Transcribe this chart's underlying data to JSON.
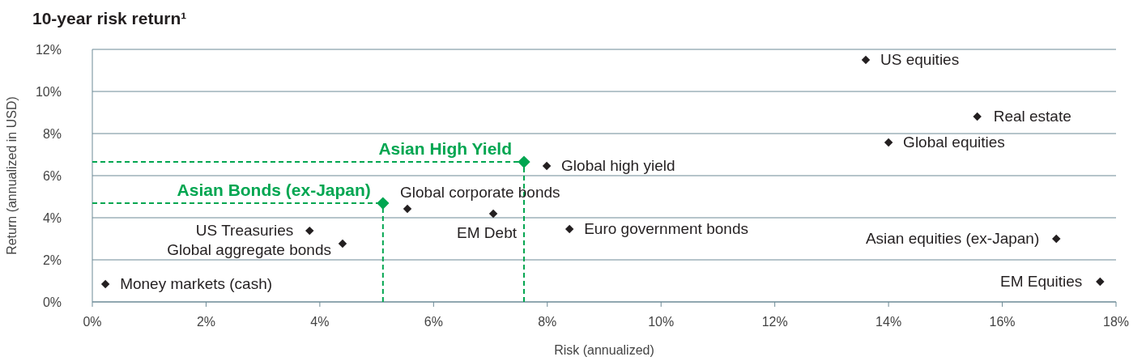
{
  "chart_data": {
    "type": "scatter",
    "title": "10-year risk return¹",
    "xlabel": "Risk (annualized)",
    "ylabel": "Return (annualized in USD)",
    "xlim": [
      0,
      18
    ],
    "ylim": [
      0,
      12
    ],
    "xticks": [
      {
        "value": 0,
        "label": "0%"
      },
      {
        "value": 2,
        "label": "2%"
      },
      {
        "value": 4,
        "label": "4%"
      },
      {
        "value": 6,
        "label": "6%"
      },
      {
        "value": 8,
        "label": "8%"
      },
      {
        "value": 10,
        "label": "10%"
      },
      {
        "value": 12,
        "label": "12%"
      },
      {
        "value": 14,
        "label": "14%"
      },
      {
        "value": 16,
        "label": "16%"
      },
      {
        "value": 18,
        "label": "18%"
      }
    ],
    "yticks": [
      {
        "value": 0,
        "label": "0%"
      },
      {
        "value": 2,
        "label": "2%"
      },
      {
        "value": 4,
        "label": "4%"
      },
      {
        "value": 6,
        "label": "6%"
      },
      {
        "value": 8,
        "label": "8%"
      },
      {
        "value": 10,
        "label": "10%"
      },
      {
        "value": 12,
        "label": "12%"
      }
    ],
    "grid": "y",
    "marker": "diamond",
    "series": [
      {
        "color": "#231f20",
        "x": [
          13.6,
          15.56,
          14.0,
          7.99,
          5.54,
          3.82,
          4.4,
          7.05,
          8.39,
          16.95,
          17.72,
          0.23
        ],
        "values": [
          11.5,
          8.81,
          7.58,
          6.46,
          4.42,
          3.38,
          2.77,
          4.19,
          3.46,
          3.0,
          0.96,
          0.85
        ]
      },
      {
        "name": "Asian High Yield",
        "color": "#00a651",
        "x": [
          7.59
        ],
        "values": [
          6.65
        ]
      },
      {
        "name": "Asian Bonds (ex-Japan)",
        "color": "#00a651",
        "x": [
          5.11
        ],
        "values": [
          4.69
        ]
      }
    ],
    "ref_lines": [
      {
        "axis": "x",
        "value": 7.59,
        "color": "#00a651",
        "line_style": "dashed"
      },
      {
        "axis": "y",
        "value": 6.65,
        "color": "#00a651",
        "line_style": "dashed"
      },
      {
        "axis": "x",
        "value": 5.11,
        "color": "#00a651",
        "line_style": "dashed"
      },
      {
        "axis": "y",
        "value": 4.69,
        "color": "#00a651",
        "line_style": "dashed"
      }
    ],
    "annotations": [
      {
        "text": "US equities",
        "x": 13.6,
        "y": 11.5
      },
      {
        "text": "Real estate",
        "x": 15.56,
        "y": 8.81
      },
      {
        "text": "Global equities",
        "x": 14.0,
        "y": 7.58
      },
      {
        "text": "Global high yield",
        "x": 7.99,
        "y": 6.46
      },
      {
        "text": "Global corporate bonds",
        "x": 5.54,
        "y": 4.42
      },
      {
        "text": "US Treasuries",
        "x": 3.82,
        "y": 3.38
      },
      {
        "text": "Global aggregate bonds",
        "x": 4.4,
        "y": 2.77
      },
      {
        "text": "EM Debt",
        "x": 7.05,
        "y": 4.19
      },
      {
        "text": "Euro government bonds",
        "x": 8.39,
        "y": 3.46
      },
      {
        "text": "Asian equities (ex-Japan)",
        "x": 16.95,
        "y": 3.0
      },
      {
        "text": "EM Equities",
        "x": 17.72,
        "y": 0.96
      },
      {
        "text": "Money markets (cash)",
        "x": 0.23,
        "y": 0.85
      }
    ]
  }
}
